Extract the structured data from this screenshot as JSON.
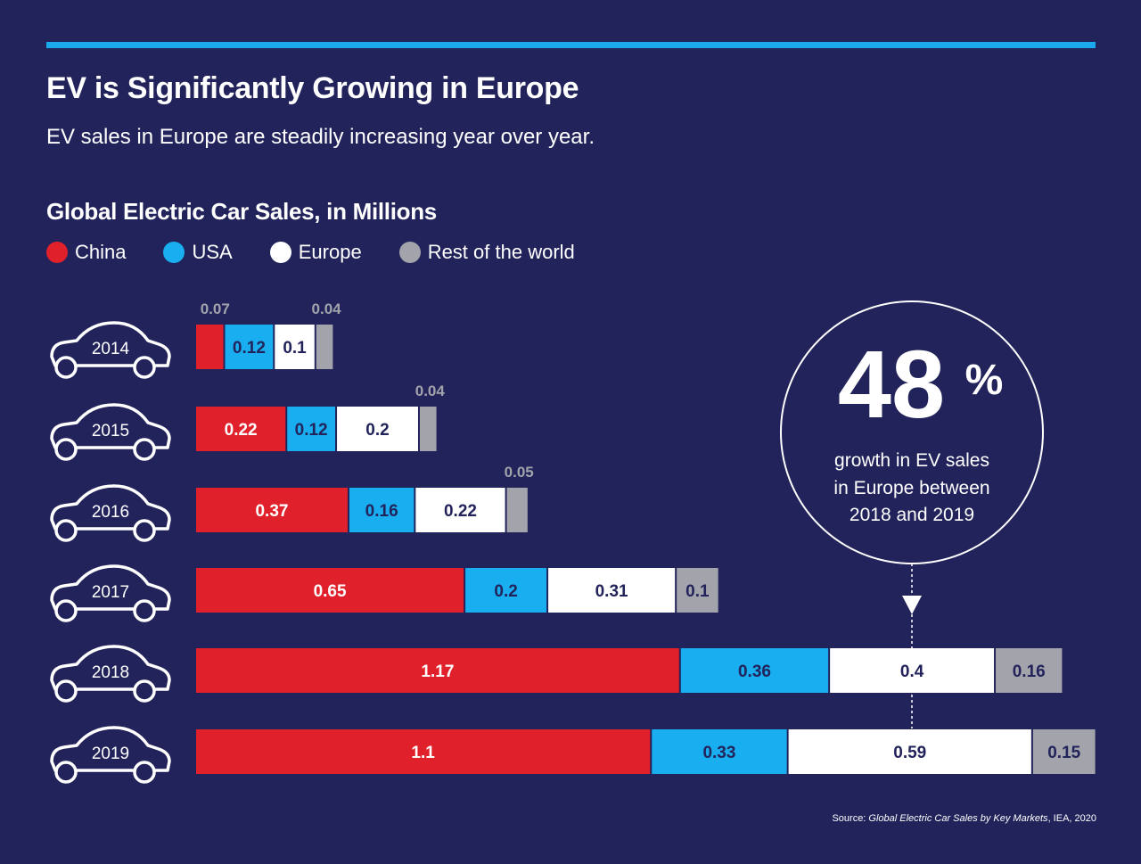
{
  "header": {
    "title": "EV is Significantly Growing in Europe",
    "subtitle": "EV sales in Europe are steadily increasing year over year."
  },
  "colors": {
    "background": "#22235b",
    "accent_rule": "#1aa9ec",
    "china": "#e0202a",
    "usa": "#19aeef",
    "europe": "#ffffff",
    "rest": "#a3a4ab",
    "dark_label": "#22235b"
  },
  "chart_data": {
    "type": "bar",
    "orientation": "horizontal",
    "stacked": true,
    "title": "Global Electric Car Sales, in Millions",
    "categories": [
      "2014",
      "2015",
      "2016",
      "2017",
      "2018",
      "2019"
    ],
    "series": [
      {
        "name": "China",
        "key": "china",
        "values": [
          0.07,
          0.22,
          0.37,
          0.65,
          1.17,
          1.1
        ]
      },
      {
        "name": "USA",
        "key": "usa",
        "values": [
          0.12,
          0.12,
          0.16,
          0.2,
          0.36,
          0.33
        ]
      },
      {
        "name": "Europe",
        "key": "europe",
        "values": [
          0.1,
          0.2,
          0.22,
          0.31,
          0.4,
          0.59
        ]
      },
      {
        "name": "Rest of the world",
        "key": "rest",
        "values": [
          0.04,
          0.04,
          0.05,
          0.1,
          0.16,
          0.15
        ]
      }
    ],
    "xlim": [
      0,
      2.17
    ],
    "legend_position": "top-left",
    "grid": false
  },
  "callout": {
    "number": "48",
    "symbol": "%",
    "lines": [
      "growth in EV sales",
      "in Europe between",
      "2018 and 2019"
    ]
  },
  "source": {
    "prefix": "Source: ",
    "title": "Global Electric Car Sales by Key Markets",
    "suffix": ", IEA, 2020"
  }
}
